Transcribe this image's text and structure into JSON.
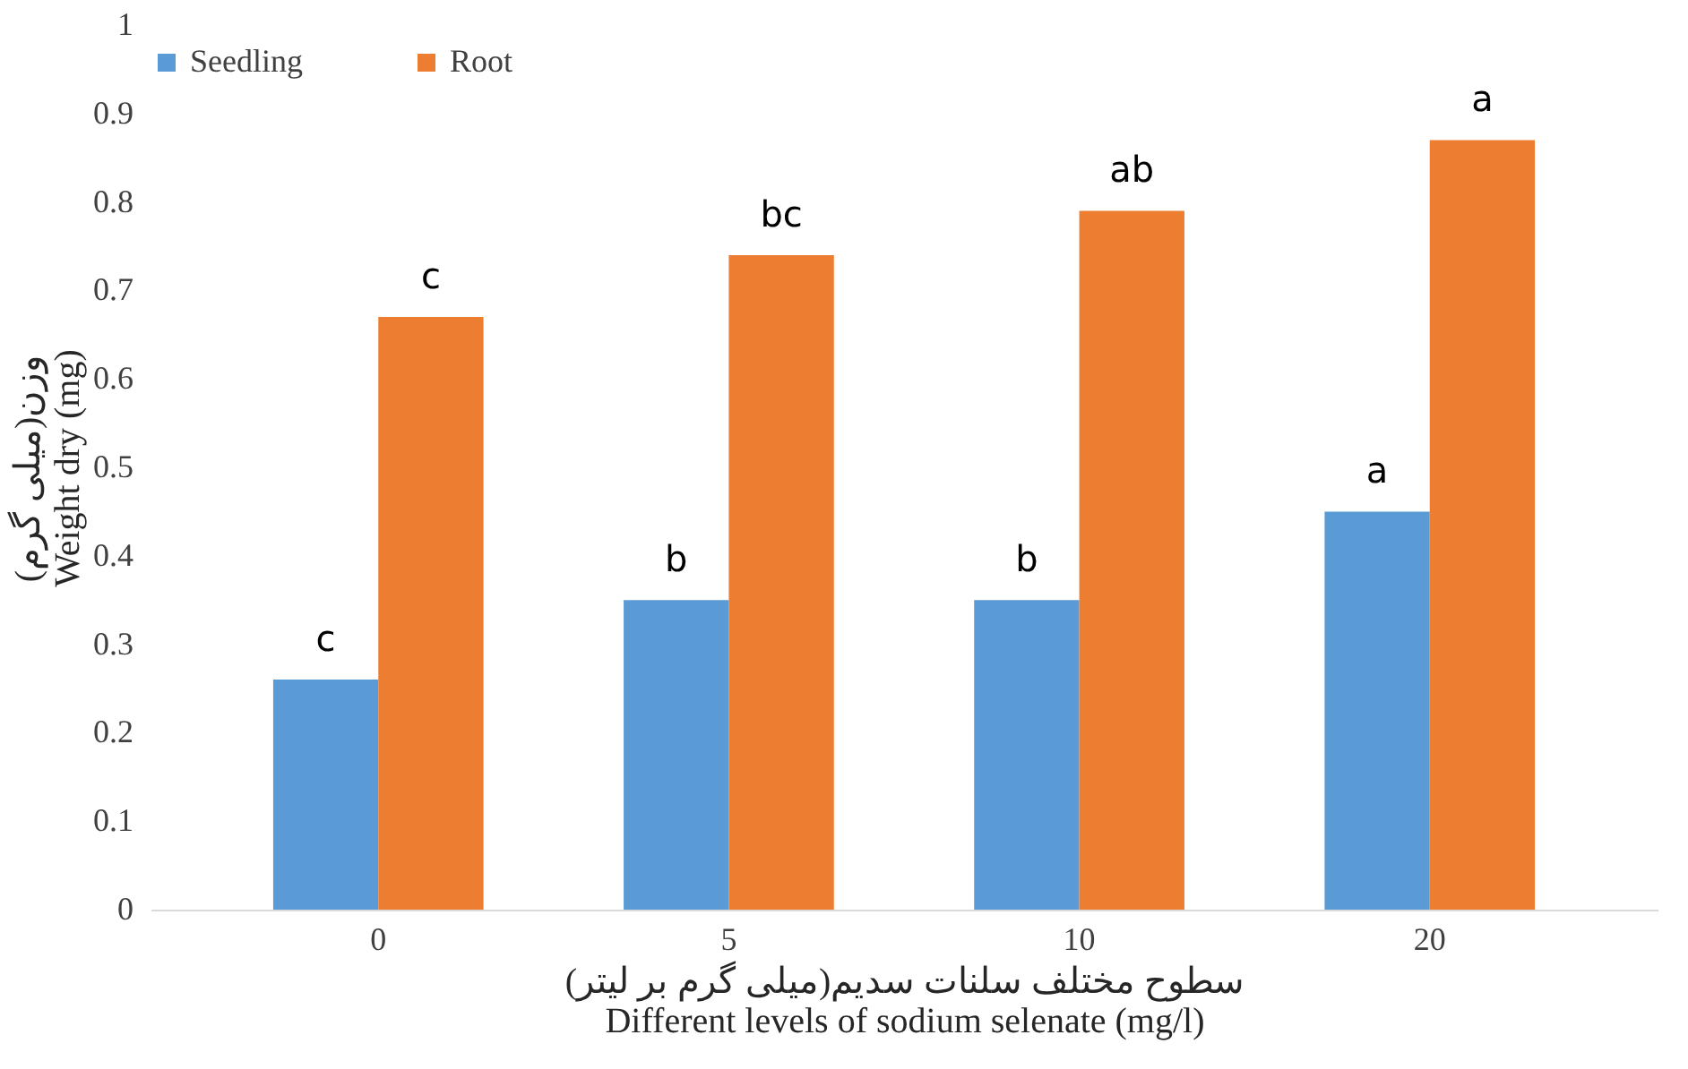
{
  "chart_data": {
    "type": "bar",
    "categories": [
      "0",
      "5",
      "10",
      "20"
    ],
    "xlabel": "(میلی گرم بر لیتر)سطوح مختلف سلنات سدیم\nDifferent levels of  sodium selenate  (mg/l)",
    "ylabel": "(میلی گرم)وزن\nWeight dry (mg)",
    "series": [
      {
        "name": "Seedling",
        "color": "#5b9bd5",
        "values": [
          0.26,
          0.35,
          0.35,
          0.45
        ],
        "value_labels": [
          "c",
          "b",
          "b",
          "a"
        ]
      },
      {
        "name": "Root",
        "color": "#ed7d31",
        "values": [
          0.67,
          0.74,
          0.79,
          0.87
        ],
        "value_labels": [
          "c",
          "bc",
          "ab",
          "a"
        ]
      }
    ],
    "ylim": [
      0,
      1
    ],
    "yticks": [
      0,
      0.1,
      0.2,
      0.3,
      0.4,
      0.5,
      0.6,
      0.7,
      0.8,
      0.9,
      1
    ],
    "grid": false,
    "legend": "top"
  }
}
